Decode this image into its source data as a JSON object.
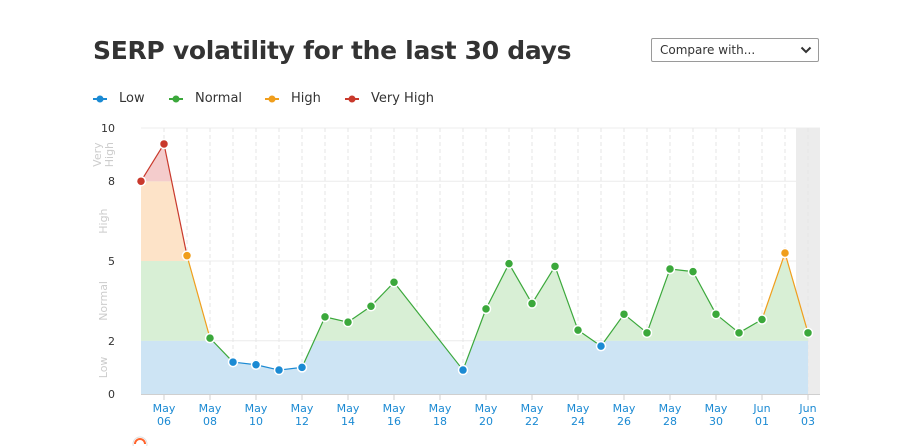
{
  "header": {
    "title": "SERP volatility for the last 30 days",
    "compare_label": "Compare with..."
  },
  "icons": {
    "compare": "chevron-down-icon",
    "watermark": "semrush-logo-icon"
  },
  "colors": {
    "low": "#1b8ad3",
    "normal": "#3ba83b",
    "high": "#f09e1c",
    "very_high": "#c9392c",
    "low_fill": "#cde4f4",
    "normal_fill": "#d8efd5",
    "high_fill": "#fde3c8",
    "very_high_fill": "#f4cccc",
    "tick_label": "#1b8ad3",
    "highlight": "#ececec"
  },
  "chart_data": {
    "type": "area",
    "title": "SERP volatility for the last 30 days",
    "ylim": [
      0,
      10
    ],
    "y_ticks": [
      "0",
      "2",
      "5",
      "8",
      "10"
    ],
    "bands": [
      {
        "label": "Low",
        "from": 0,
        "to": 2
      },
      {
        "label": "Normal",
        "from": 2,
        "to": 5
      },
      {
        "label": "High",
        "from": 5,
        "to": 8
      },
      {
        "label": "Very High",
        "from": 8,
        "to": 10
      }
    ],
    "legend": {
      "position": "top-left",
      "entries": [
        {
          "key": "low",
          "label": "Low"
        },
        {
          "key": "normal",
          "label": "Normal"
        },
        {
          "key": "high",
          "label": "High"
        },
        {
          "key": "very_high",
          "label": "Very High"
        }
      ]
    },
    "x_tick_labels": [
      [
        "May",
        "06"
      ],
      [
        "May",
        "08"
      ],
      [
        "May",
        "10"
      ],
      [
        "May",
        "12"
      ],
      [
        "May",
        "14"
      ],
      [
        "May",
        "16"
      ],
      [
        "May",
        "18"
      ],
      [
        "May",
        "20"
      ],
      [
        "May",
        "22"
      ],
      [
        "May",
        "24"
      ],
      [
        "May",
        "26"
      ],
      [
        "May",
        "28"
      ],
      [
        "May",
        "30"
      ],
      [
        "Jun",
        "01"
      ],
      [
        "Jun",
        "03"
      ]
    ],
    "grid": true,
    "highlighted_last_day": true,
    "values": [
      8.0,
      9.4,
      5.2,
      2.1,
      1.2,
      1.1,
      0.9,
      1.0,
      2.9,
      2.7,
      3.3,
      4.2,
      null,
      null,
      0.9,
      3.2,
      4.9,
      3.4,
      4.8,
      2.4,
      1.8,
      3.0,
      2.3,
      4.7,
      4.6,
      3.0,
      2.3,
      2.8,
      5.3,
      2.3
    ],
    "categories": [
      "May 05",
      "May 06",
      "May 07",
      "May 08",
      "May 09",
      "May 10",
      "May 11",
      "May 12",
      "May 13",
      "May 14",
      "May 15",
      "May 16",
      "May 17",
      "May 18",
      "May 19",
      "May 20",
      "May 21",
      "May 22",
      "May 23",
      "May 24",
      "May 25",
      "May 26",
      "May 27",
      "May 28",
      "May 29",
      "May 30",
      "May 31",
      "Jun 01",
      "Jun 02",
      "Jun 03"
    ]
  }
}
